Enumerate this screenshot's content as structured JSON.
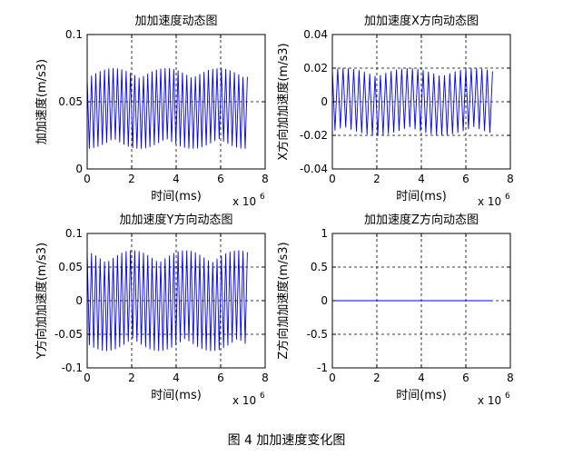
{
  "figure_caption": "图 4 加加速度变化图",
  "colors": {
    "series": "#0000ff",
    "axes": "#000000",
    "grid": "#000000",
    "background": "#ffffff"
  },
  "chart_data": [
    {
      "type": "line",
      "title": "加加速度动态图",
      "xlabel": "时间(ms)",
      "ylabel": "加加速度(m/s3)",
      "x_exponent": "x 10",
      "x_exponent_power": "6",
      "xlim": [
        0,
        8
      ],
      "ylim": [
        0,
        0.1
      ],
      "xticks": [
        0,
        2,
        4,
        6,
        8
      ],
      "xtick_labels": [
        "0",
        "2",
        "4",
        "6",
        "8"
      ],
      "yticks": [
        0,
        0.05,
        0.1
      ],
      "ytick_labels": [
        "0",
        "0.05",
        "0.1"
      ],
      "grid": true,
      "series": [
        {
          "color": "#0000ff",
          "x_range": [
            0,
            7.2
          ],
          "mean": 0.045,
          "amplitude": 0.03,
          "cycles": 37,
          "x": [
            0,
            0.5,
            1,
            1.5,
            2,
            2.5,
            3,
            3.5,
            4,
            4.5,
            5,
            5.5,
            6,
            6.5,
            7,
            7.2
          ],
          "y": [
            0.065,
            0.02,
            0.07,
            0.015,
            0.072,
            0.02,
            0.07,
            0.015,
            0.073,
            0.02,
            0.07,
            0.015,
            0.074,
            0.02,
            0.07,
            0.02
          ]
        }
      ]
    },
    {
      "type": "line",
      "title": "加加速度X方向动态图",
      "xlabel": "时间(ms)",
      "ylabel": "X方向加加速度(m/s3)",
      "x_exponent": "x 10",
      "x_exponent_power": "6",
      "xlim": [
        0,
        8
      ],
      "ylim": [
        -0.04,
        0.04
      ],
      "xticks": [
        0,
        2,
        4,
        6,
        8
      ],
      "xtick_labels": [
        "0",
        "2",
        "4",
        "6",
        "8"
      ],
      "yticks": [
        -0.04,
        -0.02,
        0,
        0.02,
        0.04
      ],
      "ytick_labels": [
        "-0.04",
        "-0.02",
        "0",
        "0.02",
        "0.04"
      ],
      "grid": true,
      "series": [
        {
          "color": "#0000ff",
          "x_range": [
            0,
            7.2
          ],
          "mean": 0,
          "amplitude": 0.02,
          "cycles": 30,
          "x": [
            0,
            0.5,
            1,
            1.5,
            2,
            2.5,
            3,
            3.5,
            4,
            4.5,
            5,
            5.5,
            6,
            6.5,
            7,
            7.2
          ],
          "y": [
            0.012,
            -0.015,
            0.01,
            -0.018,
            -0.02,
            0.02,
            -0.02,
            0.02,
            -0.02,
            0.019,
            -0.02,
            0.018,
            -0.02,
            0.018,
            -0.02,
            0
          ]
        }
      ]
    },
    {
      "type": "line",
      "title": "加加速度Y方向动态图",
      "xlabel": "时间(ms)",
      "ylabel": "Y方向加加速度(m/s3)",
      "x_exponent": "x 10",
      "x_exponent_power": "6",
      "xlim": [
        0,
        8
      ],
      "ylim": [
        -0.1,
        0.1
      ],
      "xticks": [
        0,
        2,
        4,
        6,
        8
      ],
      "xtick_labels": [
        "0",
        "2",
        "4",
        "6",
        "8"
      ],
      "yticks": [
        -0.1,
        -0.05,
        0,
        0.05,
        0.1
      ],
      "ytick_labels": [
        "-0.1",
        "-0.05",
        "0",
        "0.05",
        "0.1"
      ],
      "grid": true,
      "series": [
        {
          "color": "#0000ff",
          "x_range": [
            0,
            7.2
          ],
          "mean": 0,
          "amplitude": 0.075,
          "cycles": 37,
          "x": [
            0,
            0.5,
            1,
            1.5,
            2,
            2.5,
            3,
            3.5,
            4,
            4.5,
            5,
            5.5,
            6,
            6.5,
            7,
            7.2
          ],
          "y": [
            0.06,
            -0.07,
            0.075,
            -0.08,
            0.075,
            -0.08,
            0.078,
            -0.08,
            0.08,
            -0.08,
            0.075,
            -0.08,
            0.078,
            -0.08,
            0.05,
            -0.02
          ]
        }
      ]
    },
    {
      "type": "line",
      "title": "加加速度Z方向动态图",
      "xlabel": "时间(ms)",
      "ylabel": "Z方向加加速度(m/s3)",
      "x_exponent": "x 10",
      "x_exponent_power": "6",
      "xlim": [
        0,
        8
      ],
      "ylim": [
        -1,
        1
      ],
      "xticks": [
        0,
        2,
        4,
        6,
        8
      ],
      "xtick_labels": [
        "0",
        "2",
        "4",
        "6",
        "8"
      ],
      "yticks": [
        -1,
        -0.5,
        0,
        0.5,
        1
      ],
      "ytick_labels": [
        "-1",
        "-0.5",
        "0",
        "0.5",
        "1"
      ],
      "grid": true,
      "series": [
        {
          "color": "#0000ff",
          "x_range": [
            0,
            7.2
          ],
          "mean": 0,
          "amplitude": 0,
          "cycles": 0,
          "x": [
            0,
            7.2
          ],
          "y": [
            0,
            0
          ]
        }
      ]
    }
  ]
}
